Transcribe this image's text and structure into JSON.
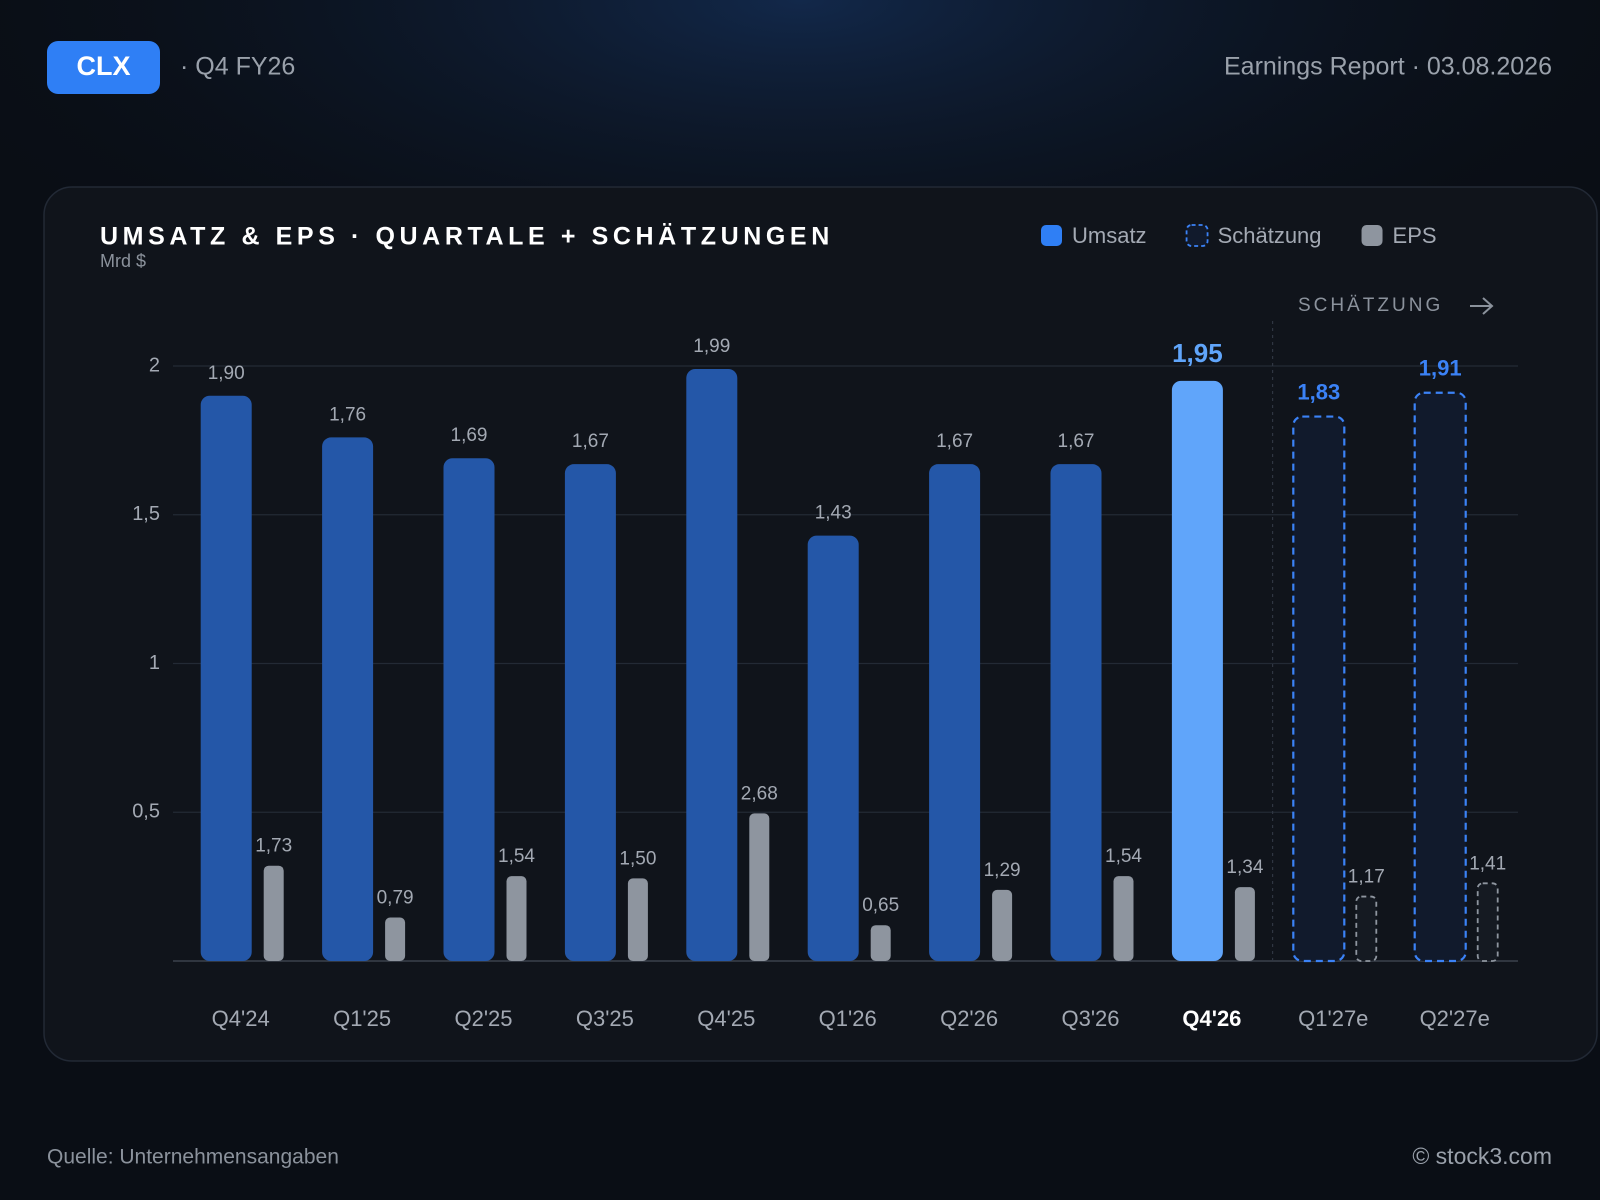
{
  "header": {
    "ticker": "CLX",
    "period": "· Q4 FY26",
    "report": "Earnings Report · 03.08.2026"
  },
  "footer": {
    "source": "Quelle: Unternehmensangaben",
    "credit": "© stock3.com"
  },
  "chart_data": {
    "type": "bar",
    "title": "UMSATZ & EPS · QUARTALE + SCHÄTZUNGEN",
    "subtitle": "Mrd $",
    "annotation": "SCHÄTZUNG",
    "categories": [
      "Q4'24",
      "Q1'25",
      "Q2'25",
      "Q3'25",
      "Q4'25",
      "Q1'26",
      "Q2'26",
      "Q3'26",
      "Q4'26",
      "Q1'27e",
      "Q2'27e"
    ],
    "series": [
      {
        "name": "Umsatz",
        "color": "#2457a8",
        "values": [
          1.9,
          1.76,
          1.69,
          1.67,
          1.99,
          1.43,
          1.67,
          1.67,
          1.95,
          null,
          null
        ],
        "value_labels": [
          "1,90",
          "1,76",
          "1,69",
          "1,67",
          "1,99",
          "1,43",
          "1,67",
          "1,67",
          "1,95",
          null,
          null
        ]
      },
      {
        "name": "Schätzung",
        "color": "#3b82f6",
        "dashed": true,
        "values": [
          null,
          null,
          null,
          null,
          null,
          null,
          null,
          null,
          null,
          1.83,
          1.91
        ],
        "value_labels": [
          null,
          null,
          null,
          null,
          null,
          null,
          null,
          null,
          null,
          "1,83",
          "1,91"
        ]
      },
      {
        "name": "EPS",
        "color": "#8e959f",
        "axis": "y2",
        "values": [
          1.73,
          0.79,
          1.54,
          1.5,
          2.68,
          0.65,
          1.29,
          1.54,
          1.34,
          1.17,
          1.41
        ],
        "value_labels": [
          "1,73",
          "0,79",
          "1,54",
          "1,50",
          "2,68",
          "0,65",
          "1,29",
          "1,54",
          "1,34",
          "1,17",
          "1,41"
        ]
      }
    ],
    "ylim": [
      0,
      2
    ],
    "yticks": [
      {
        "value": 0.5,
        "label": "0,5"
      },
      1,
      {
        "value": 1.5,
        "label": "1,5"
      },
      2
    ],
    "y2lim": [
      0,
      10.8
    ],
    "grid": true,
    "legend": "top-right",
    "highlight": 8,
    "highlight_color": "#60a5fa"
  }
}
